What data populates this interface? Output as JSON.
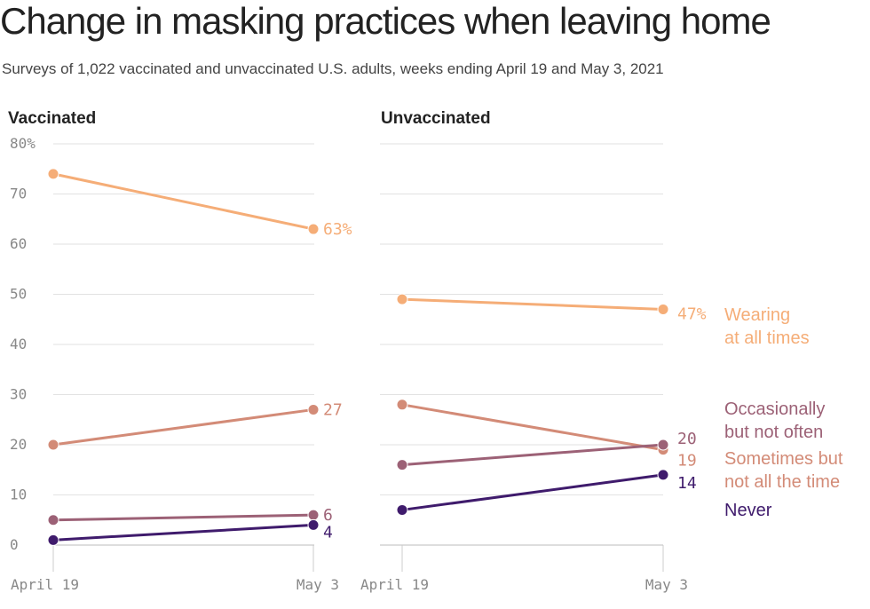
{
  "title": "Change in masking practices when leaving home",
  "subtitle": "Surveys of 1,022 vaccinated and unvaccinated U.S. adults, weeks ending April 19 and May 3, 2021",
  "chart_data": [
    {
      "type": "line",
      "title": "Vaccinated",
      "x": [
        "April 19",
        "May 3"
      ],
      "ylim": [
        0,
        80
      ],
      "yticks": [
        "80%",
        "70",
        "60",
        "50",
        "40",
        "30",
        "20",
        "10",
        "0"
      ],
      "grid": true,
      "series": [
        {
          "key": "wearing",
          "color": "#f5ad77",
          "values": [
            74,
            63
          ],
          "end_label": "63%"
        },
        {
          "key": "sometimes",
          "color": "#d38b77",
          "values": [
            20,
            27
          ],
          "end_label": "27"
        },
        {
          "key": "occasionally",
          "color": "#9c6176",
          "values": [
            5,
            6
          ],
          "end_label": "6"
        },
        {
          "key": "never",
          "color": "#3f1b6c",
          "values": [
            1,
            4
          ],
          "end_label": "4"
        }
      ]
    },
    {
      "type": "line",
      "title": "Unvaccinated",
      "x": [
        "April 19",
        "May 3"
      ],
      "ylim": [
        0,
        80
      ],
      "grid": true,
      "series": [
        {
          "key": "wearing",
          "color": "#f5ad77",
          "values": [
            49,
            47
          ],
          "end_label": "47%"
        },
        {
          "key": "sometimes",
          "color": "#d38b77",
          "values": [
            28,
            19
          ],
          "end_label": "19"
        },
        {
          "key": "occasionally",
          "color": "#9c6176",
          "values": [
            16,
            20
          ],
          "end_label": "20"
        },
        {
          "key": "never",
          "color": "#3f1b6c",
          "values": [
            7,
            14
          ],
          "end_label": "14"
        }
      ]
    }
  ],
  "legend": [
    {
      "key": "wearing",
      "lines": [
        "Wearing",
        "at all times"
      ],
      "color": "#f5ad77"
    },
    {
      "key": "occasionally",
      "lines": [
        "Occasionally",
        "but not often"
      ],
      "color": "#9c6176"
    },
    {
      "key": "sometimes",
      "lines": [
        "Sometimes but",
        "not all the time"
      ],
      "color": "#d38b77"
    },
    {
      "key": "never",
      "lines": [
        "Never"
      ],
      "color": "#3f1b6c"
    }
  ]
}
